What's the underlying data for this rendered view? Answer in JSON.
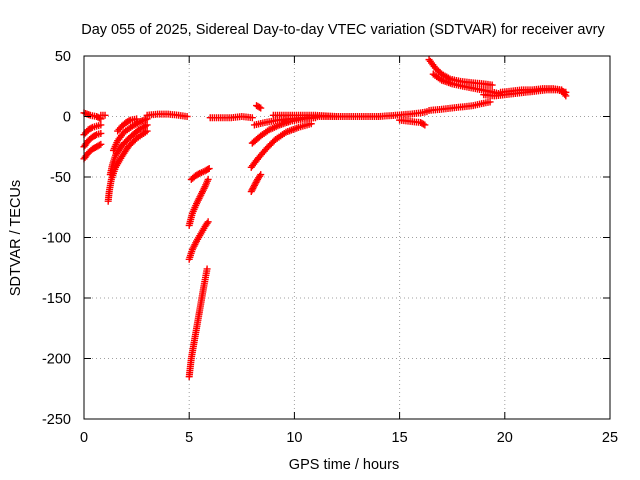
{
  "chart_data": {
    "type": "scatter",
    "title": "Day 055 of 2025, Sidereal Day-to-day VTEC variation (SDTVAR) for receiver avry",
    "xlabel": "GPS time / hours",
    "ylabel": "SDTVAR / TECUs",
    "xlim": [
      0,
      25
    ],
    "ylim": [
      -250,
      50
    ],
    "xticks": [
      0,
      5,
      10,
      15,
      20,
      25
    ],
    "xtick_labels": [
      "0",
      "5",
      "10",
      "15",
      "20",
      "25"
    ],
    "yticks": [
      50,
      0,
      -50,
      -100,
      -150,
      -200,
      -250
    ],
    "ytick_labels": [
      "50",
      "0",
      "-50",
      "-100",
      "-150",
      "-200",
      "-250"
    ],
    "grid": true,
    "marker": "+",
    "color": "#ff0000",
    "series": [
      {
        "name": "sdtvar",
        "tracks": [
          {
            "x": [
              0.0,
              0.2,
              0.4,
              0.6,
              0.8
            ],
            "y": [
              -35,
              -30,
              -27,
              -25,
              -23
            ]
          },
          {
            "x": [
              0.0,
              0.2,
              0.4,
              0.6,
              0.8
            ],
            "y": [
              -25,
              -20,
              -17,
              -15,
              -14
            ]
          },
          {
            "x": [
              0.0,
              0.2,
              0.4,
              0.6,
              0.8
            ],
            "y": [
              -15,
              -11,
              -9,
              -8,
              -7
            ]
          },
          {
            "x": [
              0.0,
              0.3,
              0.6,
              0.8
            ],
            "y": [
              3,
              1,
              0,
              -2
            ]
          },
          {
            "x": [
              0.8,
              1.0
            ],
            "y": [
              1,
              1
            ]
          },
          {
            "x": [
              1.15,
              1.2,
              1.3,
              1.5,
              1.8,
              2.1,
              2.5,
              3.0
            ],
            "y": [
              -70,
              -62,
              -52,
              -42,
              -33,
              -25,
              -18,
              -12
            ]
          },
          {
            "x": [
              1.25,
              1.35,
              1.5,
              1.8,
              2.2,
              2.6,
              3.0
            ],
            "y": [
              -48,
              -40,
              -32,
              -24,
              -17,
              -11,
              -7
            ]
          },
          {
            "x": [
              1.4,
              1.6,
              1.9,
              2.3,
              2.7,
              3.0
            ],
            "y": [
              -28,
              -20,
              -13,
              -8,
              -4,
              -2
            ]
          },
          {
            "x": [
              1.6,
              1.8,
              2.0,
              2.2,
              2.5
            ],
            "y": [
              -12,
              -8,
              -5,
              -3,
              -2
            ]
          },
          {
            "x": [
              3.0,
              3.5,
              4.0,
              4.5,
              4.9
            ],
            "y": [
              1,
              2,
              2,
              1,
              0
            ]
          },
          {
            "x": [
              5.0,
              5.1,
              5.25,
              5.4,
              5.55,
              5.7,
              5.85
            ],
            "y": [
              -215,
              -200,
              -185,
              -170,
              -155,
              -140,
              -126
            ]
          },
          {
            "x": [
              5.0,
              5.15,
              5.35,
              5.55,
              5.75,
              5.9
            ],
            "y": [
              -118,
              -110,
              -103,
              -97,
              -91,
              -87
            ]
          },
          {
            "x": [
              5.0,
              5.15,
              5.35,
              5.55,
              5.75,
              5.9
            ],
            "y": [
              -90,
              -80,
              -72,
              -65,
              -58,
              -52
            ]
          },
          {
            "x": [
              5.1,
              5.3,
              5.5,
              5.75,
              5.95
            ],
            "y": [
              -52,
              -49,
              -47,
              -45,
              -43
            ]
          },
          {
            "x": [
              6.0,
              6.5,
              7.0,
              7.5,
              8.0
            ],
            "y": [
              -1,
              -1,
              -1,
              0,
              -1
            ]
          },
          {
            "x": [
              7.95,
              8.1,
              8.25,
              8.4
            ],
            "y": [
              -62,
              -57,
              -52,
              -48
            ]
          },
          {
            "x": [
              7.95,
              8.3,
              8.7,
              9.1,
              9.6,
              10.2,
              10.8
            ],
            "y": [
              -42,
              -34,
              -26,
              -19,
              -13,
              -9,
              -6
            ]
          },
          {
            "x": [
              8.0,
              8.4,
              8.8,
              9.3,
              9.8,
              10.4,
              11.0
            ],
            "y": [
              -22,
              -16,
              -11,
              -7,
              -4,
              -2,
              -1
            ]
          },
          {
            "x": [
              8.1,
              8.6,
              9.2,
              9.8,
              10.5,
              11.2,
              12.0
            ],
            "y": [
              -7,
              -5,
              -3,
              -2,
              -1,
              0,
              0
            ]
          },
          {
            "x": [
              8.2,
              8.4
            ],
            "y": [
              9,
              7
            ]
          },
          {
            "x": [
              9.0,
              10.0,
              11.0,
              12.0,
              13.0,
              14.0
            ],
            "y": [
              1,
              1,
              1,
              0,
              0,
              0
            ]
          },
          {
            "x": [
              14.0,
              14.8,
              15.5,
              16.0,
              16.3
            ],
            "y": [
              0,
              1,
              2,
              3,
              4
            ]
          },
          {
            "x": [
              15.0,
              15.5,
              16.0,
              16.2
            ],
            "y": [
              -3,
              -4,
              -5,
              -7
            ]
          },
          {
            "x": [
              16.4,
              17.0,
              17.5,
              18.0,
              18.5,
              19.0,
              19.3
            ],
            "y": [
              5,
              6,
              7,
              8,
              9,
              11,
              12
            ]
          },
          {
            "x": [
              16.4,
              16.7,
              17.0,
              17.4,
              17.9,
              18.4,
              19.0,
              19.4
            ],
            "y": [
              47,
              40,
              35,
              31,
              29,
              28,
              27,
              26
            ]
          },
          {
            "x": [
              16.6,
              17.0,
              17.5,
              18.0,
              18.6,
              19.2,
              19.7
            ],
            "y": [
              35,
              30,
              27,
              25,
              23,
              21,
              19
            ]
          },
          {
            "x": [
              19.0,
              19.5,
              20.0,
              20.5,
              21.0,
              21.5,
              22.0,
              22.5,
              22.9
            ],
            "y": [
              18,
              17,
              18,
              19,
              20,
              21,
              22,
              22,
              20
            ]
          },
          {
            "x": [
              19.8,
              20.3,
              20.8,
              21.3,
              21.8,
              22.3,
              22.7,
              22.9
            ],
            "y": [
              20,
              21,
              22,
              22,
              23,
              23,
              22,
              17
            ]
          }
        ]
      }
    ]
  }
}
